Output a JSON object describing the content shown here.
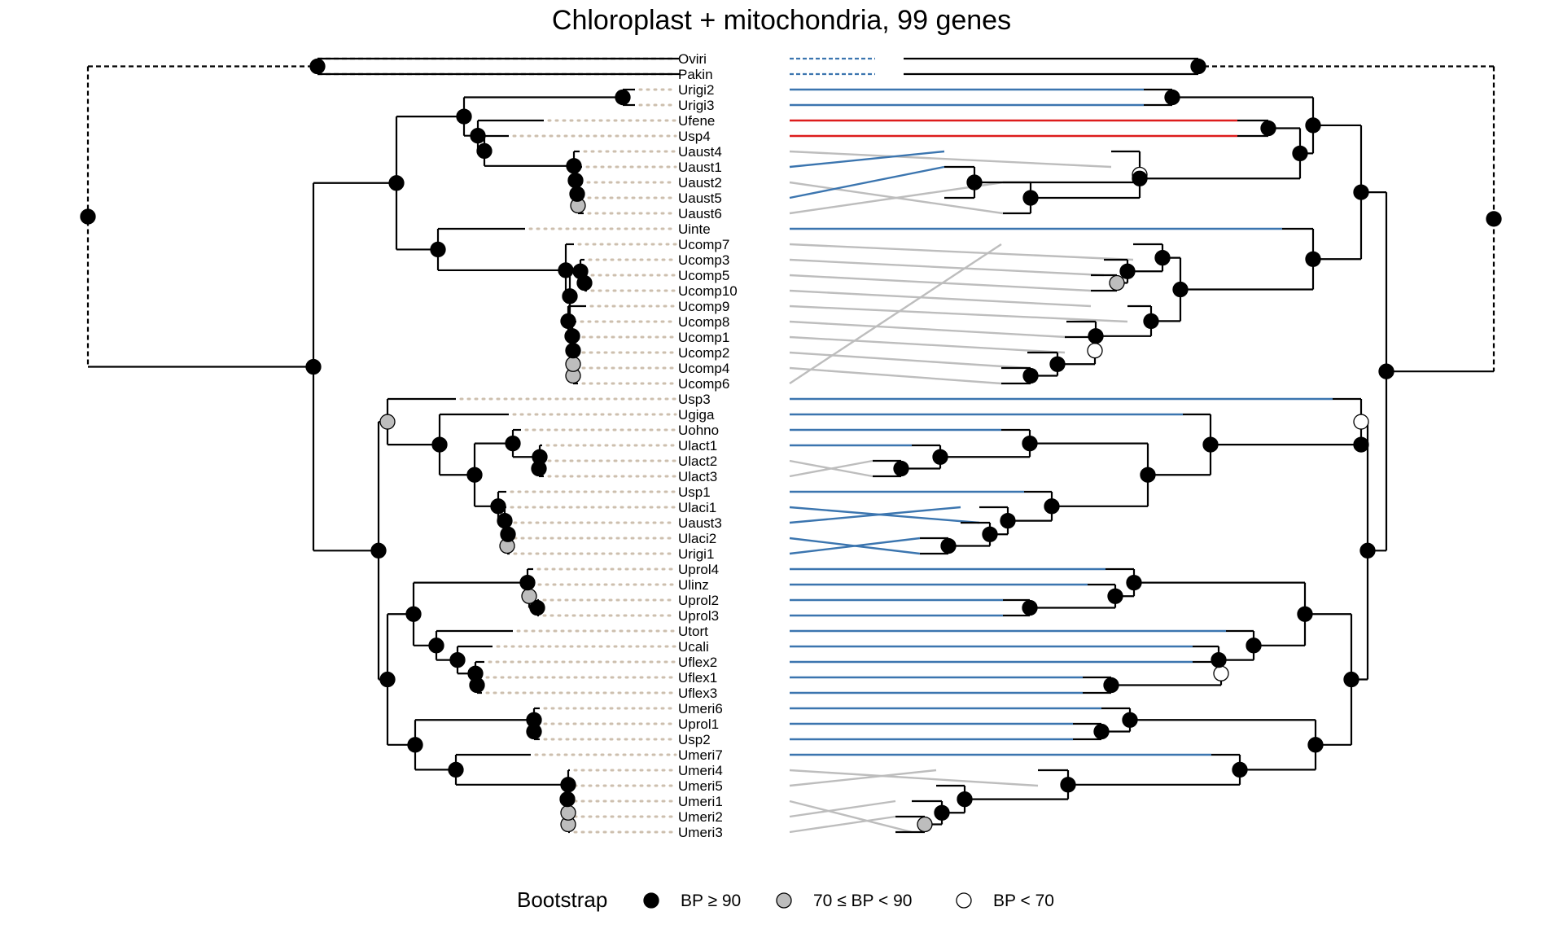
{
  "title": "Chloroplast + mitochondria, 99 genes",
  "colors": {
    "branch": "#000000",
    "outgroup_link": "#3b75af",
    "link_blue": "#3b75af",
    "link_red": "#dd1c1c",
    "link_grey": "#bdbdbd",
    "tip_dots": "#cdbfae",
    "bp_high": "#000000",
    "bp_mid": "#bdbdbd",
    "bp_low": "#ffffff"
  },
  "taxa": [
    "Oviri",
    "Pakin",
    "Urigi2",
    "Urigi3",
    "Ufene",
    "Usp4",
    "Uaust4",
    "Uaust1",
    "Uaust2",
    "Uaust5",
    "Uaust6",
    "Uinte",
    "Ucomp7",
    "Ucomp3",
    "Ucomp5",
    "Ucomp10",
    "Ucomp9",
    "Ucomp8",
    "Ucomp1",
    "Ucomp2",
    "Ucomp4",
    "Ucomp6",
    "Usp3",
    "Ugiga",
    "Uohno",
    "Ulact1",
    "Ulact2",
    "Ulact3",
    "Usp1",
    "Ulaci1",
    "Uaust3",
    "Ulaci2",
    "Urigi1",
    "Uprol4",
    "Ulinz",
    "Uprol2",
    "Uprol3",
    "Utort",
    "Ucali",
    "Uflex2",
    "Uflex1",
    "Uflex3",
    "Umeri6",
    "Uprol1",
    "Usp2",
    "Umeri7",
    "Umeri4",
    "Umeri5",
    "Umeri1",
    "Umeri2",
    "Umeri3"
  ],
  "legend": {
    "title": "Bootstrap",
    "items": [
      {
        "label": "BP ≥ 90",
        "fill": "#000000"
      },
      {
        "label": "70 ≤ BP < 90",
        "fill": "#bdbdbd"
      },
      {
        "label": "BP < 70",
        "fill": "#ffffff"
      }
    ]
  }
}
